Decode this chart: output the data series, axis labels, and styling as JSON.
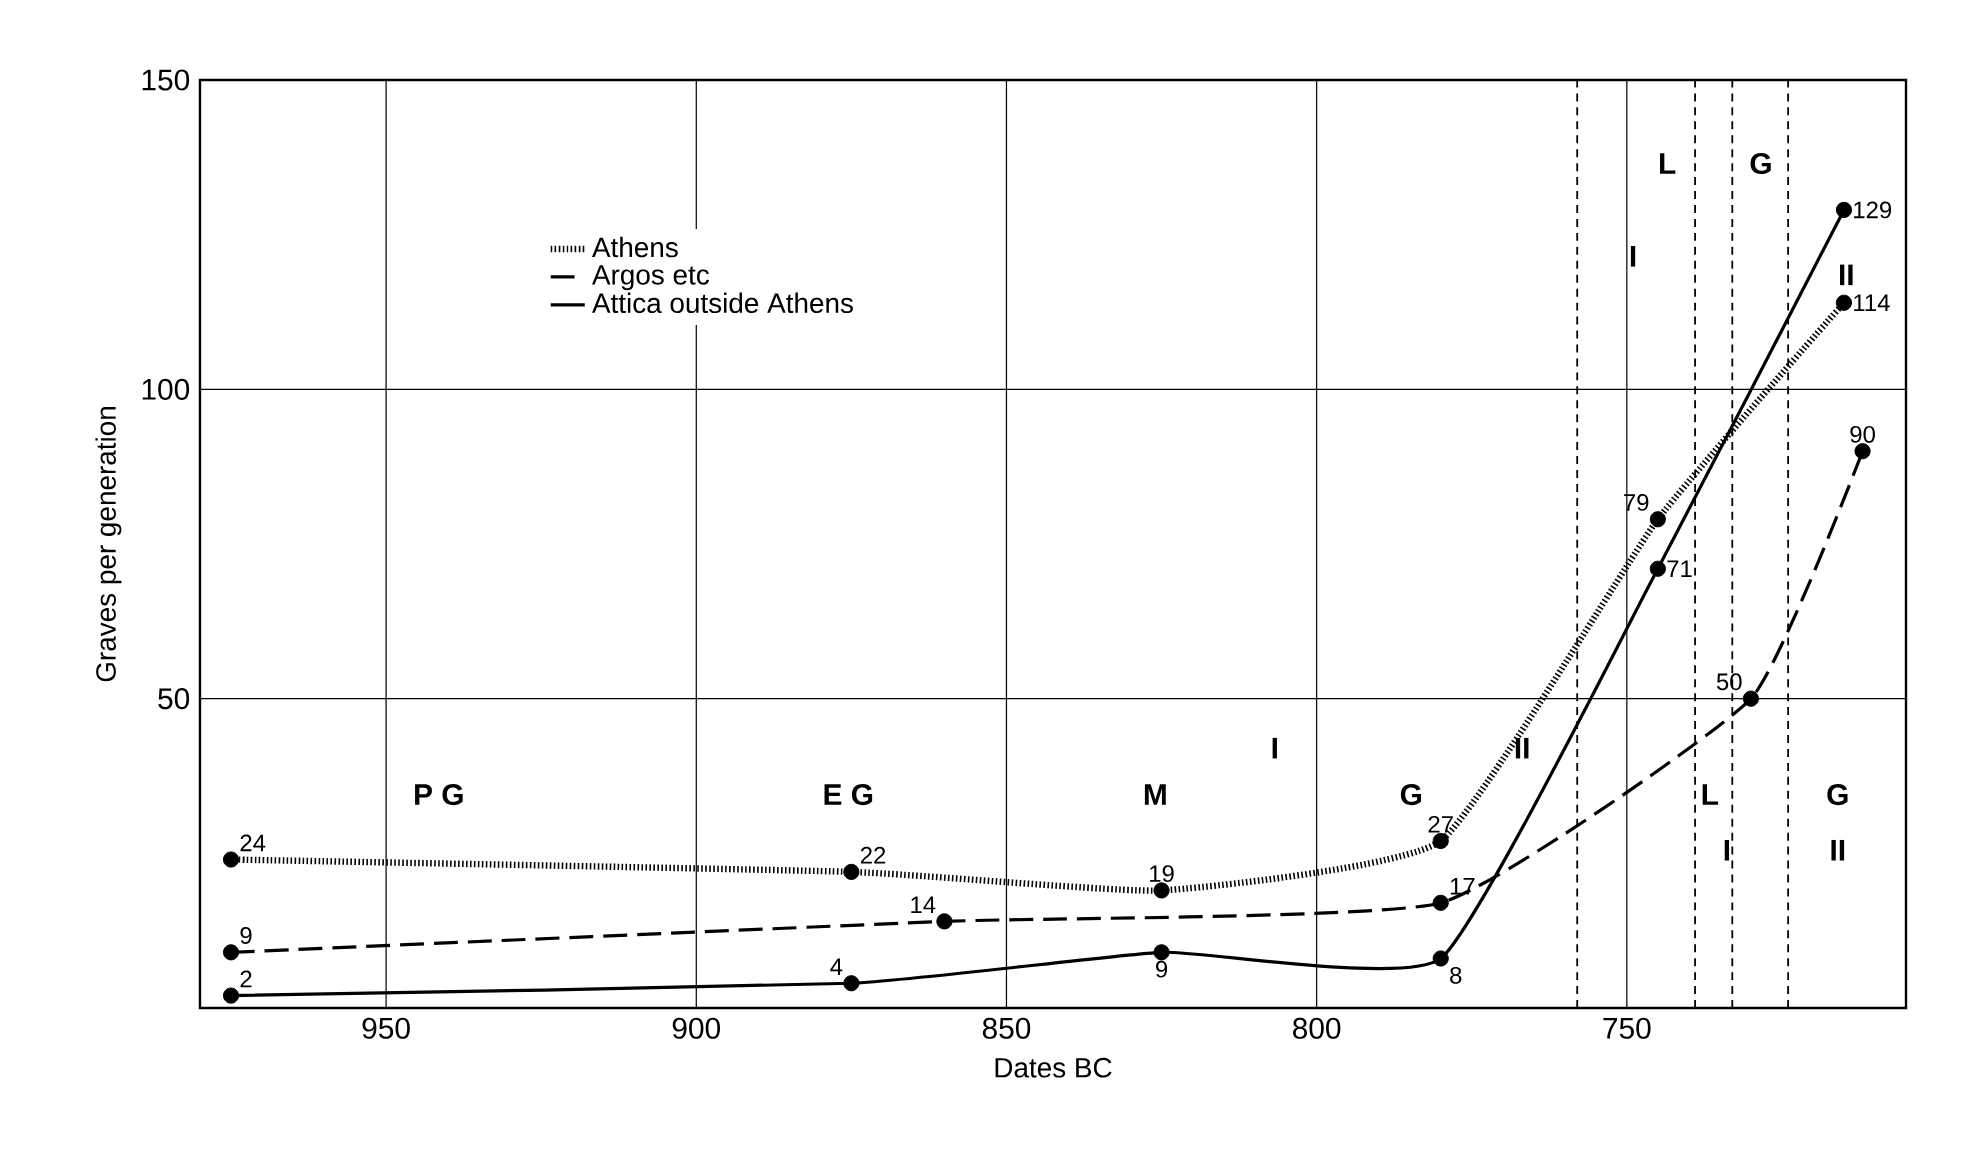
{
  "chart_data": {
    "type": "line",
    "xlabel": "Dates BC",
    "ylabel": "Graves per generation",
    "xlim": [
      980,
      705
    ],
    "xticks": [
      950,
      900,
      850,
      800,
      750
    ],
    "ylim": [
      0,
      150
    ],
    "yticks": [
      50,
      100,
      150
    ],
    "grid": true,
    "legend": "top left",
    "marker": "circle",
    "data_labels": true,
    "series": [
      {
        "name": "Athens",
        "color": "#000000",
        "line_style": "dotted",
        "x": [
          975,
          875,
          825,
          780,
          745,
          715
        ],
        "values": [
          24,
          22,
          19,
          27,
          79,
          114
        ]
      },
      {
        "name": "Argos etc",
        "color": "#000000",
        "line_style": "dashed",
        "x": [
          975,
          860,
          780,
          730,
          712
        ],
        "values": [
          9,
          14,
          17,
          50,
          90
        ]
      },
      {
        "name": "Attica outside Athens",
        "color": "#000000",
        "line_style": "solid",
        "x": [
          975,
          875,
          825,
          780,
          745,
          715
        ],
        "values": [
          2,
          4,
          9,
          8,
          71,
          129
        ]
      }
    ],
    "ref_lines": [
      {
        "axis": "x",
        "value": 758,
        "line_style": "dashed",
        "color": "#000000"
      },
      {
        "axis": "x",
        "value": 739,
        "line_style": "dashed",
        "color": "#000000"
      },
      {
        "axis": "x",
        "value": 733,
        "line_style": "dashed",
        "color": "#000000"
      },
      {
        "axis": "x",
        "value": 724,
        "line_style": "dashed",
        "color": "#000000"
      }
    ],
    "annotations": [
      "P G",
      "E G",
      "M",
      "I",
      "G",
      "II",
      "L",
      "G",
      "I",
      "II",
      "L",
      "I",
      "G",
      "II"
    ]
  }
}
